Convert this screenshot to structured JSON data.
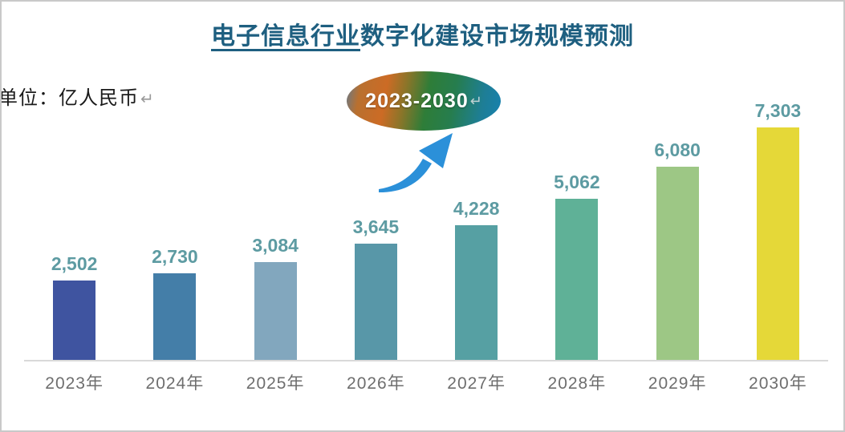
{
  "header": {
    "title_underlined": "电子信息行业",
    "title_rest": "数字化建设市场规模预测",
    "unit_label": "单位：亿人民币",
    "return_mark": "↵"
  },
  "badge": {
    "label": "2023-2030",
    "return_mark": "↵"
  },
  "chart_data": {
    "type": "bar",
    "title": "电子信息行业数字化建设市场规模预测",
    "unit": "亿人民币",
    "categories": [
      "2023年",
      "2024年",
      "2025年",
      "2026年",
      "2027年",
      "2028年",
      "2029年",
      "2030年"
    ],
    "values": [
      2502,
      2730,
      3084,
      3645,
      4228,
      5062,
      6080,
      7303
    ],
    "value_labels": [
      "2,502",
      "2,730",
      "3,084",
      "3,645",
      "4,228",
      "5,062",
      "6,080",
      "7,303"
    ],
    "bar_colors": [
      "#3f54a0",
      "#447ea8",
      "#82a7be",
      "#5897a8",
      "#56a0a3",
      "#5fb197",
      "#9dc785",
      "#e5d838"
    ],
    "ylim": [
      0,
      7303
    ],
    "grid": false,
    "legend": "none",
    "value_label_color": "#5d9ba2",
    "axis_label_color": "#6e6e6e"
  },
  "colors": {
    "title": "#1e5f80",
    "axis_line": "#d9d9d9",
    "arrow": "#2b90d9",
    "badge_text": "#ffffff"
  }
}
